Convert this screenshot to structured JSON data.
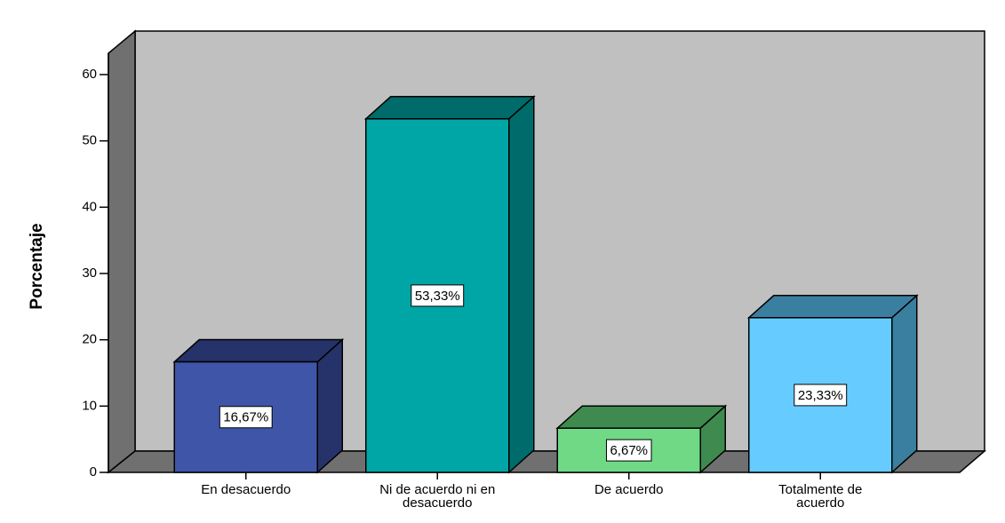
{
  "chart_data": {
    "type": "bar",
    "y_axis_label": "Porcentaje",
    "categories": [
      "En desacuerdo",
      "Ni de acuerdo ni en\ndesacuerdo",
      "De acuerdo",
      "Totalmente de\nacuerdo"
    ],
    "values": [
      16.67,
      53.33,
      6.67,
      23.33
    ],
    "value_labels": [
      "16,67%",
      "53,33%",
      "6,67%",
      "23,33%"
    ],
    "colors": [
      "#3f55a8",
      "#00a5a5",
      "#6fd985",
      "#66ccff"
    ],
    "shade_colors": [
      "#26336a",
      "#006b6b",
      "#3f8b4f",
      "#3a7fa0"
    ],
    "ylim": [
      0,
      60
    ],
    "yticks": [
      0,
      10,
      20,
      30,
      40,
      50,
      60
    ]
  }
}
